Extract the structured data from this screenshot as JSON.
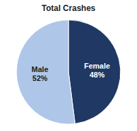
{
  "chart_data": {
    "type": "pie",
    "title": "Total Crashes",
    "categories": [
      "Female",
      "Male"
    ],
    "values": [
      48,
      52
    ],
    "value_labels": [
      "48%",
      "52%"
    ],
    "colors": [
      "#1f3864",
      "#aec6e8"
    ],
    "data_labels": true
  }
}
